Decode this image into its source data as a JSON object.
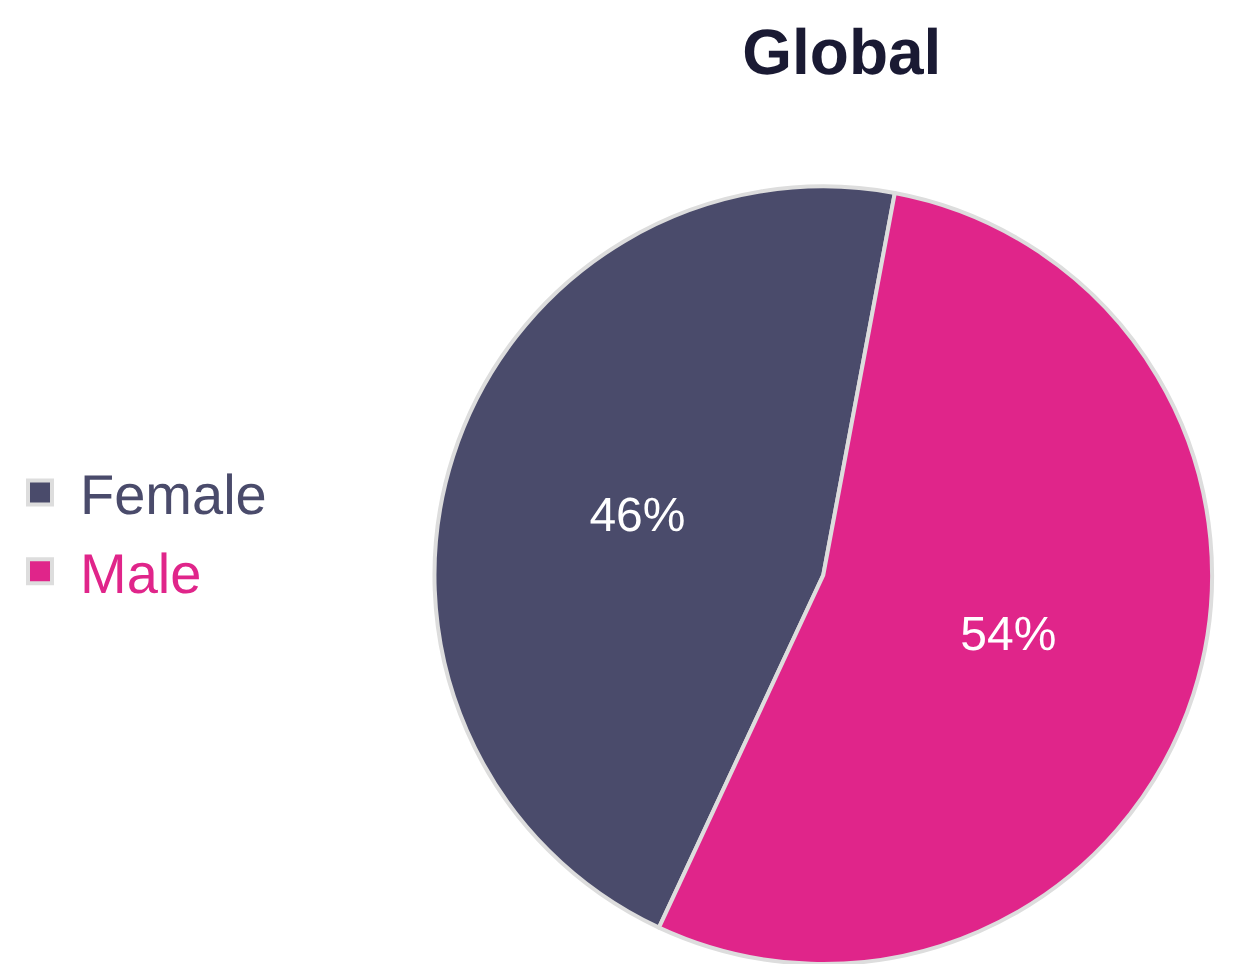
{
  "chart_data": {
    "type": "pie",
    "title": "Global",
    "categories": [
      "Female",
      "Male"
    ],
    "values": [
      46,
      54
    ],
    "colors": [
      "#4a4b6b",
      "#e0258a"
    ],
    "value_labels": [
      "46%",
      "54%"
    ],
    "legend": "left"
  }
}
